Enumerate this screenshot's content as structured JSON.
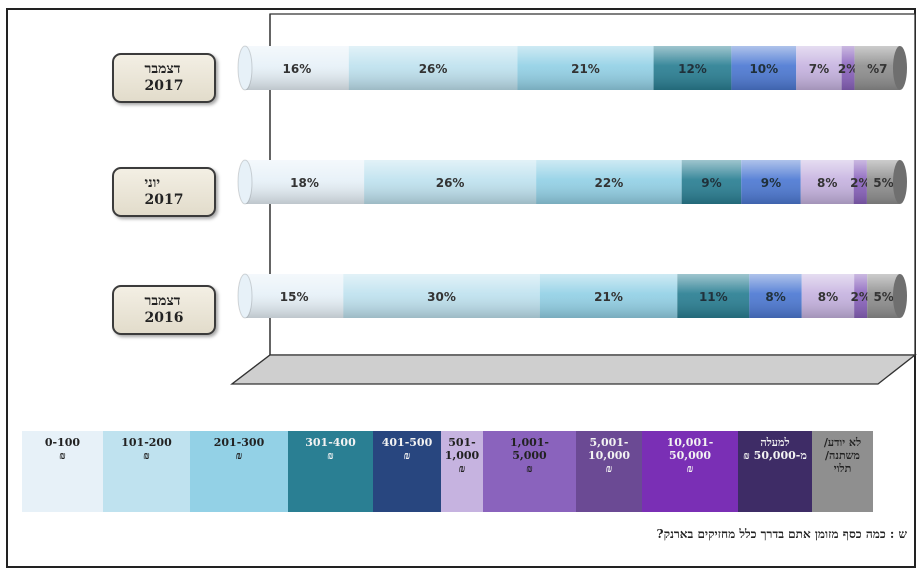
{
  "chart_data": {
    "type": "bar",
    "stacked": true,
    "orientation": "horizontal",
    "percent_stacked": true,
    "categories": [
      "דצמבר\n2017",
      "יוני\n2017",
      "דצמבר\n2016"
    ],
    "series": [
      {
        "name": "0-100\n₪",
        "color": "#e7f1f8",
        "text_color": "#222222",
        "values": [
          16,
          18,
          15
        ],
        "labels": [
          "16%",
          "18%",
          "15%"
        ]
      },
      {
        "name": "101-200\n₪",
        "color": "#bfe2ef",
        "text_color": "#222222",
        "values": [
          26,
          26,
          30
        ],
        "labels": [
          "26%",
          "26%",
          "30%"
        ]
      },
      {
        "name": "201-300\n₪",
        "color": "#93d1e6",
        "text_color": "#222222",
        "values": [
          21,
          22,
          21
        ],
        "labels": [
          "21%",
          "22%",
          "21%"
        ]
      },
      {
        "name": "301-400\n₪",
        "color": "#2a7f93",
        "text_color": "#0d1f2a",
        "values": [
          12,
          9,
          11
        ],
        "labels": [
          "12%",
          "9%",
          "11%"
        ]
      },
      {
        "name": "401-500\n₪",
        "color": "#4d79d3",
        "text_color": "#0d1f2a",
        "values": [
          10,
          9,
          8
        ],
        "labels": [
          "10%",
          "9%",
          "8%"
        ]
      },
      {
        "name": "501-\n1,000\n₪",
        "color": "#c6b3e0",
        "text_color": "#222222",
        "values": [
          7,
          8,
          8
        ],
        "labels": [
          "7%",
          "8%",
          "8%"
        ]
      },
      {
        "name": "1,001-\n5,000\n₪",
        "color": "#8a63bd",
        "text_color": "#222222",
        "values": [
          2,
          2,
          2
        ],
        "labels": [
          "2%",
          "2%",
          "2%"
        ]
      },
      {
        "name": "5,001-\n10,000\n₪",
        "color": "#6b4a94",
        "text_color": "#f2f2f2",
        "values": [
          0,
          0,
          0
        ],
        "labels": [
          "",
          "",
          ""
        ]
      },
      {
        "name": "10,001-\n50,000\n₪",
        "color": "#7a2fb5",
        "text_color": "#f2f2f2",
        "values": [
          0,
          0,
          0
        ],
        "labels": [
          "",
          "",
          ""
        ]
      },
      {
        "name": "למעלה\nמ-50,000 ₪",
        "color": "#3e2c66",
        "text_color": "#f2f2f2",
        "values": [
          0,
          0,
          0
        ],
        "labels": [
          "",
          "",
          ""
        ]
      },
      {
        "name": "לא יודע/\nמשתנה/\nתלוי",
        "color": "#8f8f8f",
        "text_color": "#222222",
        "values": [
          7,
          5,
          5
        ],
        "labels": [
          "%7",
          "5%",
          "5%"
        ]
      }
    ],
    "legend_position": "bottom",
    "grid": false
  },
  "legend_colors": [
    "#e7f1f8",
    "#bfe2ef",
    "#93d1e6",
    "#2a7f93",
    "#28467f",
    "#c6b3e0",
    "#8a63bd",
    "#6b4a94",
    "#7a2fb5",
    "#3e2c66",
    "#8f8f8f"
  ],
  "legend_text_colors": [
    "#222",
    "#222",
    "#222",
    "#f2f2f2",
    "#f2f2f2",
    "#222",
    "#222",
    "#f2f2f2",
    "#f2f2f2",
    "#f2f2f2",
    "#222"
  ],
  "question": "ש : כמה כסף מזומן אתם בדרך כלל מחזיקים בארנק?"
}
